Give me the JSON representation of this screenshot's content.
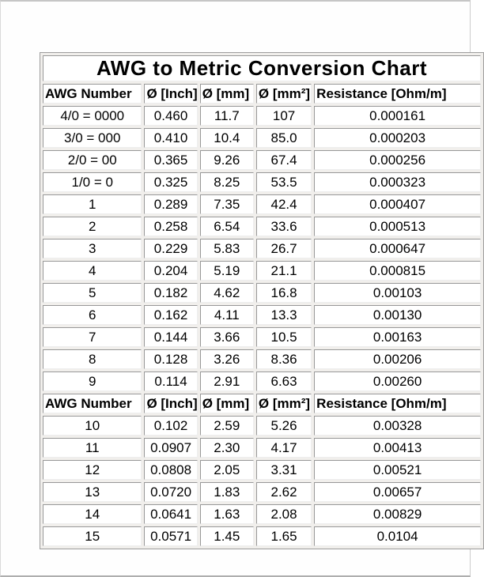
{
  "table": {
    "title": "AWG to Metric Conversion Chart",
    "columns": [
      "AWG Number",
      "Ø [Inch]",
      "Ø [mm]",
      "Ø [mm²]",
      "Resistance [Ohm/m]"
    ],
    "rows_group1": [
      [
        "4/0 = 0000",
        "0.460",
        "11.7",
        "107",
        "0.000161"
      ],
      [
        "3/0 = 000",
        "0.410",
        "10.4",
        "85.0",
        "0.000203"
      ],
      [
        "2/0 = 00",
        "0.365",
        "9.26",
        "67.4",
        "0.000256"
      ],
      [
        "1/0 = 0",
        "0.325",
        "8.25",
        "53.5",
        "0.000323"
      ],
      [
        "1",
        "0.289",
        "7.35",
        "42.4",
        "0.000407"
      ],
      [
        "2",
        "0.258",
        "6.54",
        "33.6",
        "0.000513"
      ],
      [
        "3",
        "0.229",
        "5.83",
        "26.7",
        "0.000647"
      ],
      [
        "4",
        "0.204",
        "5.19",
        "21.1",
        "0.000815"
      ],
      [
        "5",
        "0.182",
        "4.62",
        "16.8",
        "0.00103"
      ],
      [
        "6",
        "0.162",
        "4.11",
        "13.3",
        "0.00130"
      ],
      [
        "7",
        "0.144",
        "3.66",
        "10.5",
        "0.00163"
      ],
      [
        "8",
        "0.128",
        "3.26",
        "8.36",
        "0.00206"
      ],
      [
        "9",
        "0.114",
        "2.91",
        "6.63",
        "0.00260"
      ]
    ],
    "rows_group2": [
      [
        "10",
        "0.102",
        "2.59",
        "5.26",
        "0.00328"
      ],
      [
        "11",
        "0.0907",
        "2.30",
        "4.17",
        "0.00413"
      ],
      [
        "12",
        "0.0808",
        "2.05",
        "3.31",
        "0.00521"
      ],
      [
        "13",
        "0.0720",
        "1.83",
        "2.62",
        "0.00657"
      ],
      [
        "14",
        "0.0641",
        "1.63",
        "2.08",
        "0.00829"
      ],
      [
        "15",
        "0.0571",
        "1.45",
        "1.65",
        "0.0104"
      ]
    ]
  },
  "colors": {
    "cell_background": "#ffffff",
    "cell_border_shadow": "#989898",
    "cell_border_highlight": "#eeeeee",
    "table_gap_background": "#f1efec",
    "outer_frame": "#c6c6c6",
    "text": "#000000"
  }
}
